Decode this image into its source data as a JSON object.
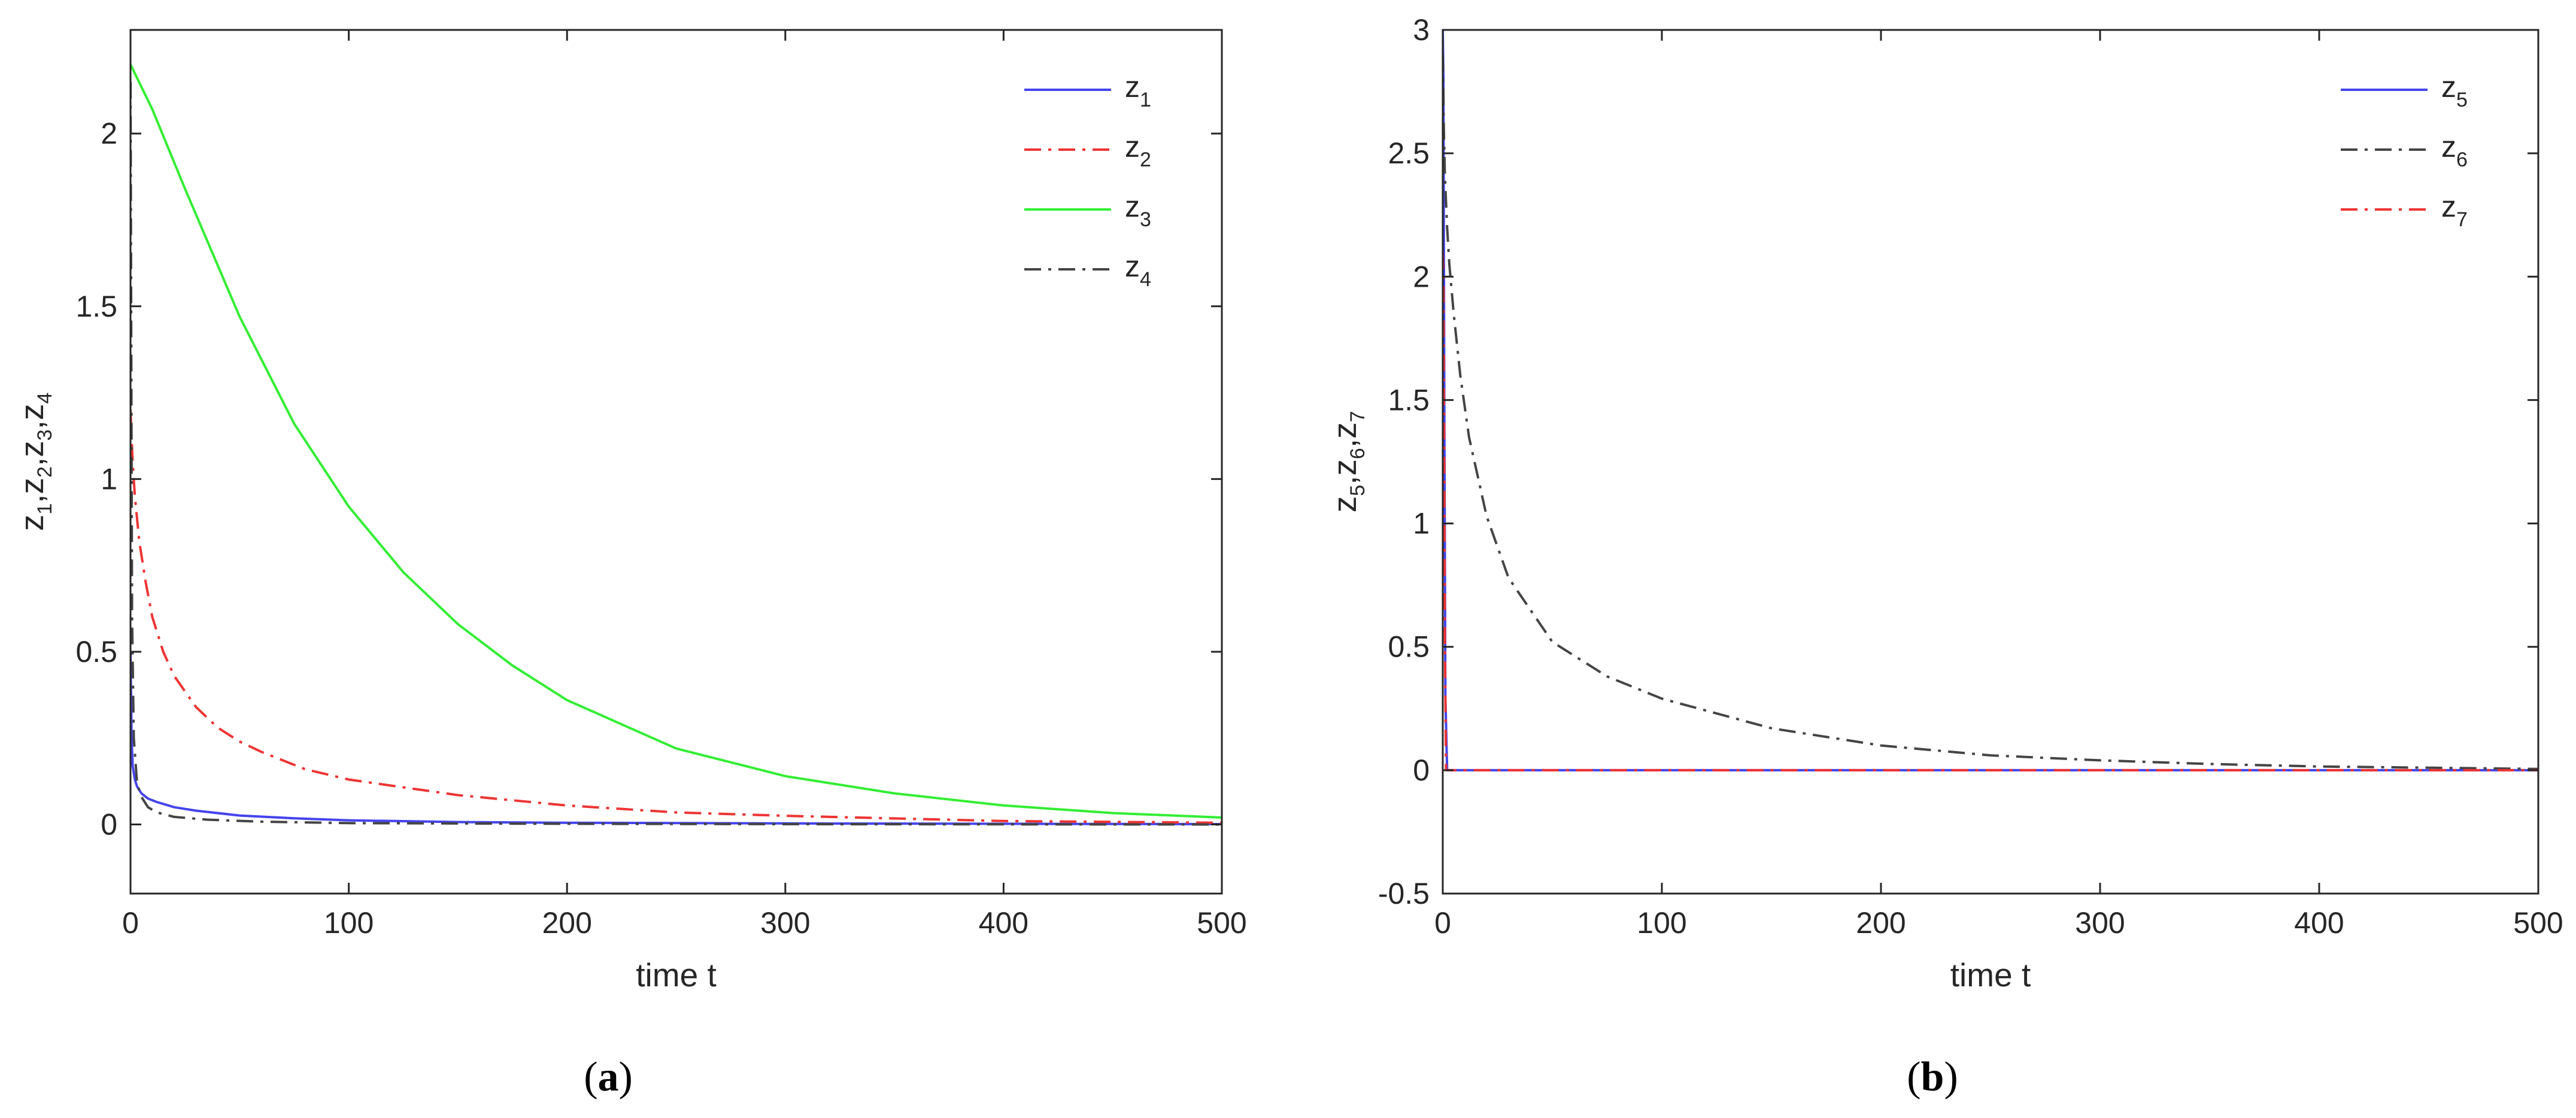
{
  "panel_labels": [
    {
      "open": "(",
      "letter": "a",
      "close": ")"
    },
    {
      "open": "(",
      "letter": "b",
      "close": ")"
    }
  ],
  "chart_data": [
    {
      "type": "line",
      "xlabel": "time t",
      "ylabel": [
        {
          "base": "z",
          "sub": "1",
          "sep": ","
        },
        {
          "base": "z",
          "sub": "2",
          "sep": ","
        },
        {
          "base": "z",
          "sub": "3",
          "sep": ","
        },
        {
          "base": "z",
          "sub": "4",
          "sep": ""
        }
      ],
      "xlim": [
        0,
        500
      ],
      "ylim": [
        -0.2,
        2.3
      ],
      "xticks": [
        0,
        100,
        200,
        300,
        400,
        500
      ],
      "xtick_labels": [
        "0",
        "100",
        "200",
        "300",
        "400",
        "500"
      ],
      "yticks": [
        0,
        0.5,
        1,
        1.5,
        2
      ],
      "ytick_labels": [
        "0",
        "0.5",
        "1",
        "1.5",
        "2"
      ],
      "legend_position": "top-right",
      "grid": false,
      "series": [
        {
          "name_base": "z",
          "name_sub": "1",
          "color": "#4444ee",
          "dash": "solid",
          "x": [
            0,
            0.5,
            1,
            2,
            3,
            5,
            8,
            12,
            20,
            30,
            50,
            75,
            100,
            150,
            200,
            300,
            400,
            500
          ],
          "y": [
            0.5,
            0.25,
            0.17,
            0.13,
            0.11,
            0.09,
            0.075,
            0.065,
            0.05,
            0.04,
            0.026,
            0.018,
            0.012,
            0.007,
            0.005,
            0.003,
            0.002,
            0.001
          ]
        },
        {
          "name_base": "z",
          "name_sub": "2",
          "color": "#ee3333",
          "dash": "dashdot",
          "x": [
            0,
            0.5,
            1,
            2,
            4,
            7,
            10,
            15,
            20,
            30,
            40,
            50,
            60,
            80,
            100,
            150,
            200,
            250,
            300,
            400,
            500
          ],
          "y": [
            1.2,
            1.12,
            1.05,
            0.95,
            0.82,
            0.7,
            0.6,
            0.5,
            0.43,
            0.34,
            0.28,
            0.24,
            0.21,
            0.16,
            0.13,
            0.085,
            0.055,
            0.035,
            0.025,
            0.01,
            0.005
          ]
        },
        {
          "name_base": "z",
          "name_sub": "3",
          "color": "#33ee33",
          "dash": "solid",
          "x": [
            0,
            10,
            25,
            50,
            75,
            100,
            125,
            150,
            175,
            200,
            250,
            300,
            350,
            400,
            450,
            500
          ],
          "y": [
            2.2,
            2.07,
            1.84,
            1.47,
            1.16,
            0.92,
            0.73,
            0.58,
            0.46,
            0.36,
            0.22,
            0.14,
            0.09,
            0.055,
            0.033,
            0.02
          ]
        },
        {
          "name_base": "z",
          "name_sub": "4",
          "color": "#444444",
          "dash": "dashdot",
          "x": [
            0,
            0.3,
            0.7,
            1.5,
            3,
            5,
            8,
            12,
            20,
            35,
            60,
            100,
            200,
            300,
            500
          ],
          "y": [
            2.15,
            1.5,
            0.6,
            0.25,
            0.12,
            0.08,
            0.05,
            0.035,
            0.022,
            0.014,
            0.008,
            0.004,
            0.002,
            0.001,
            0.0
          ]
        }
      ]
    },
    {
      "type": "line",
      "xlabel": "time t",
      "ylabel": [
        {
          "base": "z",
          "sub": "5",
          "sep": ","
        },
        {
          "base": "z",
          "sub": "6",
          "sep": ","
        },
        {
          "base": "z",
          "sub": "7",
          "sep": ""
        }
      ],
      "xlim": [
        0,
        500
      ],
      "ylim": [
        -0.5,
        3
      ],
      "xticks": [
        0,
        100,
        200,
        300,
        400,
        500
      ],
      "xtick_labels": [
        "0",
        "100",
        "200",
        "300",
        "400",
        "500"
      ],
      "yticks": [
        -0.5,
        0,
        0.5,
        1,
        1.5,
        2,
        2.5,
        3
      ],
      "ytick_labels": [
        "-0.5",
        "0",
        "0.5",
        "1",
        "1.5",
        "2",
        "2.5",
        "3"
      ],
      "legend_position": "top-right",
      "grid": false,
      "series": [
        {
          "name_base": "z",
          "name_sub": "5",
          "color": "#4444ee",
          "dash": "solid",
          "x": [
            0,
            0.3,
            0.7,
            1.2,
            2,
            5,
            500
          ],
          "y": [
            3.0,
            2.8,
            1.5,
            0.3,
            0.0,
            0.0,
            0.0
          ]
        },
        {
          "name_base": "z",
          "name_sub": "6",
          "color": "#444444",
          "dash": "dashdot",
          "x": [
            0,
            0.5,
            1,
            2,
            3,
            5,
            8,
            12,
            20,
            30,
            50,
            75,
            100,
            150,
            200,
            250,
            300,
            350,
            400,
            450,
            500
          ],
          "y": [
            2.9,
            2.6,
            2.4,
            2.2,
            2.05,
            1.85,
            1.6,
            1.35,
            1.03,
            0.78,
            0.52,
            0.38,
            0.29,
            0.17,
            0.1,
            0.06,
            0.04,
            0.025,
            0.015,
            0.01,
            0.005
          ]
        },
        {
          "name_base": "z",
          "name_sub": "7",
          "color": "#ee3333",
          "dash": "dashdot",
          "x": [
            0,
            0.3,
            0.6,
            1,
            1.5,
            3,
            500
          ],
          "y": [
            2.1,
            2.0,
            1.4,
            0.5,
            0.0,
            0.0,
            0.0
          ]
        }
      ]
    }
  ]
}
